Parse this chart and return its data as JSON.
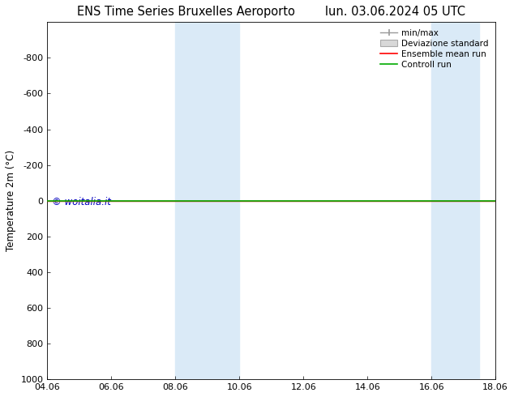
{
  "title_left": "ENS Time Series Bruxelles Aeroporto",
  "title_right": "lun. 03.06.2024 05 UTC",
  "ylabel": "Temperature 2m (°C)",
  "ylim_top": -1000,
  "ylim_bottom": 1000,
  "yticks": [
    -800,
    -600,
    -400,
    -200,
    0,
    200,
    400,
    600,
    800,
    1000
  ],
  "xtick_labels": [
    "04.06",
    "06.06",
    "08.06",
    "10.06",
    "12.06",
    "14.06",
    "16.06",
    "18.06"
  ],
  "xtick_positions": [
    0,
    2,
    4,
    6,
    8,
    10,
    12,
    14
  ],
  "shaded_regions": [
    {
      "xstart": 4.0,
      "xend": 4.8,
      "color": "#daeaf7"
    },
    {
      "xstart": 4.8,
      "xend": 6.0,
      "color": "#daeaf7"
    },
    {
      "xstart": 12.0,
      "xend": 12.7,
      "color": "#daeaf7"
    },
    {
      "xstart": 12.7,
      "xend": 13.5,
      "color": "#daeaf7"
    }
  ],
  "green_line_y": 0,
  "red_line_y": 0,
  "green_line_color": "#00aa00",
  "red_line_color": "#ff0000",
  "minmax_color": "#999999",
  "std_fill_color": "#d8d8d8",
  "std_edge_color": "#aaaaaa",
  "watermark_text": "© woitalia.it",
  "watermark_color": "#0000bb",
  "legend_labels": [
    "min/max",
    "Deviazione standard",
    "Ensemble mean run",
    "Controll run"
  ],
  "background_color": "#ffffff",
  "title_fontsize": 10.5,
  "axis_fontsize": 8.5,
  "tick_fontsize": 8
}
